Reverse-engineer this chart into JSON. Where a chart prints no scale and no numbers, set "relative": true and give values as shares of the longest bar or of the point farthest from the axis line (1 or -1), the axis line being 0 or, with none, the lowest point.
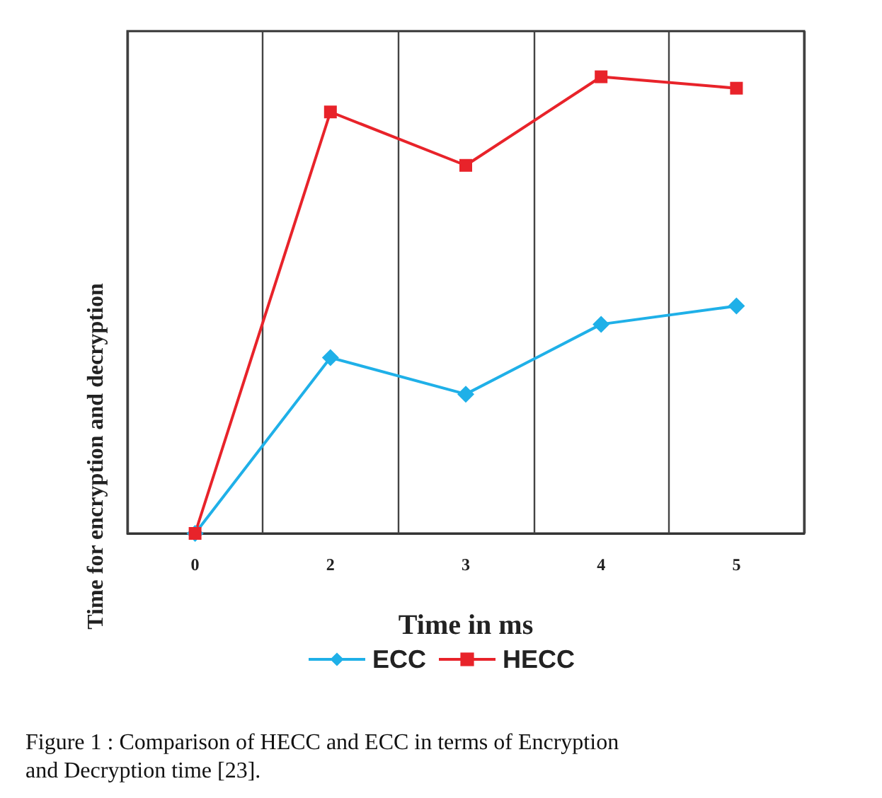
{
  "chart_data": {
    "type": "line",
    "xlabel": "Time in ms",
    "ylabel": "Time for encryption and decryption",
    "categories": [
      "0",
      "2",
      "3",
      "4",
      "5"
    ],
    "relative": true,
    "series": [
      {
        "name": "ECC",
        "color": "#1fb0e8",
        "marker": "diamond",
        "values": [
          0,
          0.385,
          0.305,
          0.458,
          0.498
        ]
      },
      {
        "name": "HECC",
        "color": "#e8232a",
        "marker": "square",
        "values": [
          0,
          0.923,
          0.806,
          1,
          0.975
        ]
      }
    ],
    "grid": "x",
    "legend": "bottom",
    "line_style": "solid",
    "annotations": [
      "Figure 1 : Comparison of HECC and ECC in terms of Encryption and Decryption time [23]."
    ]
  }
}
